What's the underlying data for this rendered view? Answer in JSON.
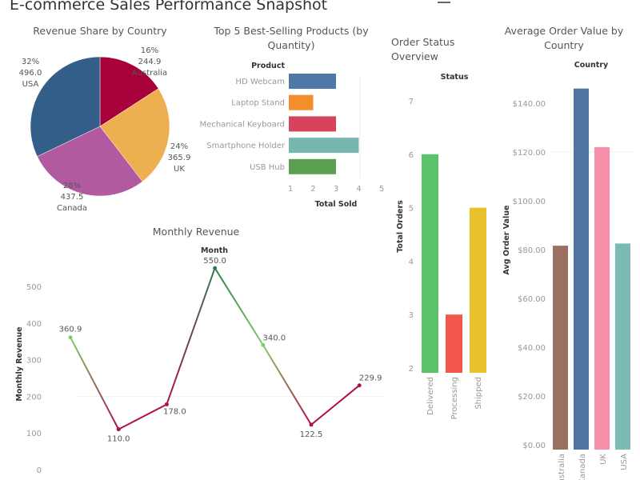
{
  "title": "E-commerce Sales Performance Snapshot",
  "chart_data": [
    {
      "type": "pie",
      "title": "Revenue Share by Country",
      "slices": [
        {
          "label": "Australia",
          "value": 244.9,
          "percent": "16%",
          "color": "#a8003a"
        },
        {
          "label": "UK",
          "value": 365.9,
          "percent": "24%",
          "color": "#eeaf50"
        },
        {
          "label": "Canada",
          "value": 437.5,
          "percent": "28%",
          "color": "#b25aa0"
        },
        {
          "label": "USA",
          "value": 496.0,
          "percent": "32%",
          "color": "#335e8a"
        }
      ],
      "value_labels": [
        "244.9",
        "365.9",
        "437.5",
        "496.0"
      ]
    },
    {
      "type": "bar",
      "orientation": "horizontal",
      "title_lines": [
        "Top 5 Best-Selling Products (by",
        "Quantity)"
      ],
      "ylabel": "Product",
      "xlabel": "Total Sold",
      "categories": [
        "HD Webcam",
        "Laptop Stand",
        "Mechanical Keyboard",
        "Smartphone Holder",
        "USB Hub"
      ],
      "values": [
        3,
        2,
        3,
        4,
        3
      ],
      "colors": [
        "#4e79a7",
        "#f28e2b",
        "#d6435a",
        "#76b7b2",
        "#59a14f"
      ],
      "xticks": [
        "1",
        "2",
        "3",
        "4",
        "5"
      ],
      "xlim": [
        1,
        5
      ]
    },
    {
      "type": "line",
      "title": "Monthly Revenue",
      "xlabel": "Month",
      "ylabel": "Monthly Revenue",
      "values": [
        360.9,
        110.0,
        178.0,
        550.0,
        340.0,
        122.5,
        229.9
      ],
      "value_labels": [
        "360.9",
        "110.0",
        "178.0",
        "550.0",
        "340.0",
        "122.5",
        "229.9"
      ],
      "yticks": [
        "0",
        "100",
        "200",
        "300",
        "400",
        "500"
      ],
      "ylim": [
        0,
        560
      ],
      "colors": {
        "high": "#2e7d4f",
        "mid": "#7ccf6a",
        "low": "#b0104a"
      }
    },
    {
      "type": "bar",
      "title_lines": [
        "Order Status",
        "Overview"
      ],
      "xlabel": "Status",
      "ylabel": "Total Orders",
      "categories": [
        "Delivered",
        "Processing",
        "Shipped"
      ],
      "values": [
        6,
        3,
        5
      ],
      "colors": [
        "#5bc26a",
        "#f2564c",
        "#e9c12c"
      ],
      "yticks": [
        "2",
        "3",
        "4",
        "5",
        "6",
        "7"
      ],
      "ylim": [
        2,
        7
      ]
    },
    {
      "type": "bar",
      "title_lines": [
        "Average Order Value by",
        "Country"
      ],
      "xlabel": "Country",
      "ylabel": "Avg Order Value",
      "categories": [
        "Australia",
        "Canada",
        "UK",
        "USA"
      ],
      "values": [
        81.6,
        146.0,
        122.0,
        82.5
      ],
      "colors": [
        "#9c7061",
        "#4f76a3",
        "#f58fa9",
        "#7cbab4"
      ],
      "yticks": [
        "$0.00",
        "$20.00",
        "$40.00",
        "$60.00",
        "$80.00",
        "$100.00",
        "$120.00",
        "$140.00"
      ],
      "ylim": [
        0,
        140
      ]
    }
  ]
}
